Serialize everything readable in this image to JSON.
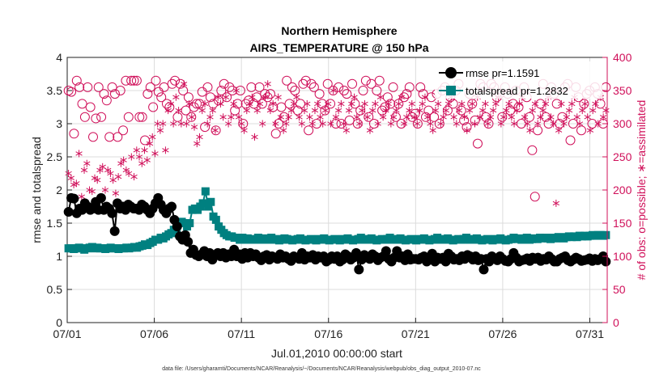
{
  "chart_data": {
    "type": "line",
    "title": "Northern Hemisphere",
    "subtitle": "AIRS_TEMPERATURE @ 150 hPa",
    "xlabel": "Jul.01,2010 00:00:00 start",
    "ylabel_left": "rmse and totalspread",
    "ylabel_right": "# of obs: o=possible; ∗=assimilated",
    "footnote": "data file: /Users/gharamti/Documents/NCAR/Reanalysis/~/Documents/NCAR/Reanalysis/webpub/obs_diag_output_2010-07.nc",
    "xlim": [
      0,
      31
    ],
    "ylim_left": [
      0,
      4
    ],
    "ylim_right": [
      0,
      400
    ],
    "x_ticks": [
      0,
      5,
      10,
      15,
      20,
      25,
      30
    ],
    "x_tick_labels": [
      "07/01",
      "07/06",
      "07/11",
      "07/16",
      "07/21",
      "07/26",
      "07/31"
    ],
    "y_ticks_left": [
      "0",
      "0.5",
      "1",
      "1.5",
      "2",
      "2.5",
      "3",
      "3.5",
      "4"
    ],
    "y_ticks_right": [
      "0",
      "50",
      "100",
      "150",
      "200",
      "250",
      "300",
      "350",
      "400"
    ],
    "legend": [
      {
        "label": "rmse pr=1.1591",
        "color": "#000000",
        "marker": "circle"
      },
      {
        "label": "totalspread pr=1.2832",
        "color": "#008080",
        "marker": "square"
      }
    ],
    "colors": {
      "rmse": "#000000",
      "spread": "#008080",
      "obs": "#d0105a",
      "axis_right": "#d0105a"
    },
    "series": {
      "rmse": [
        1.67,
        1.88,
        1.87,
        1.65,
        1.72,
        1.7,
        1.8,
        1.75,
        1.7,
        1.72,
        1.82,
        1.7,
        1.88,
        1.7,
        1.75,
        1.72,
        1.65,
        1.38,
        1.8,
        1.72,
        1.75,
        1.7,
        1.78,
        1.75,
        1.72,
        1.72,
        1.7,
        1.78,
        1.75,
        1.7,
        1.65,
        1.72,
        1.8,
        1.88,
        1.78,
        1.7,
        1.65,
        1.72,
        1.75,
        1.55,
        1.45,
        1.3,
        1.25,
        1.32,
        1.22,
        1.05,
        1.1,
        1.02,
        1.0,
        1.03,
        1.08,
        1.0,
        1.05,
        0.95,
        1.02,
        1.05,
        1.0,
        1.05,
        0.98,
        1.03,
        1.0,
        1.1,
        1.0,
        1.03,
        0.96,
        1.05,
        0.98,
        1.05,
        1.0,
        1.03,
        0.98,
        0.94,
        1.0,
        1.02,
        0.95,
        1.0,
        0.98,
        0.96,
        1.03,
        0.98,
        1.0,
        0.96,
        0.93,
        1.0,
        0.98,
        0.96,
        1.05,
        0.95,
        1.0,
        0.98,
        1.02,
        0.95,
        1.0,
        0.98,
        1.0,
        0.92,
        0.95,
        1.0,
        0.96,
        1.0,
        0.92,
        0.95,
        1.03,
        1.0,
        0.95,
        0.98,
        1.05,
        0.8,
        0.95,
        1.02,
        0.98,
        0.96,
        1.03,
        1.0,
        0.94,
        0.98,
        1.0,
        1.08,
        0.96,
        0.92,
        0.98,
        1.08,
        0.98,
        1.0,
        0.94,
        1.03,
        0.95,
        0.96,
        0.96,
        0.95,
        0.98,
        1.0,
        0.92,
        0.98,
        1.04,
        0.92,
        0.98,
        0.96,
        0.98,
        0.92,
        1.04,
        1.0,
        0.95,
        0.96,
        0.94,
        1.0,
        0.96,
        1.02,
        1.0,
        0.95,
        1.0,
        0.94,
        0.96,
        0.8,
        0.96,
        0.92,
        1.0,
        0.96,
        0.94,
        1.0,
        0.96,
        0.93,
        0.92,
        0.96,
        1.05,
        0.98,
        0.92,
        0.94,
        0.95,
        0.97,
        0.93,
        0.98,
        0.96,
        0.98,
        0.93,
        0.96,
        0.95,
        1.0,
        0.96,
        0.92,
        0.92,
        0.96,
        0.98,
        1.0,
        0.94,
        0.92,
        0.95,
        0.98,
        0.96,
        0.93,
        0.94,
        0.95,
        0.97,
        0.93,
        0.96,
        0.94,
        0.96,
        1.0,
        0.92
      ],
      "totalspread": [
        1.12,
        1.12,
        1.11,
        1.12,
        1.13,
        1.12,
        1.1,
        1.12,
        1.13,
        1.14,
        1.12,
        1.13,
        1.12,
        1.12,
        1.11,
        1.12,
        1.13,
        1.12,
        1.12,
        1.11,
        1.12,
        1.12,
        1.13,
        1.12,
        1.13,
        1.14,
        1.13,
        1.15,
        1.16,
        1.18,
        1.17,
        1.2,
        1.22,
        1.25,
        1.25,
        1.28,
        1.27,
        1.3,
        1.33,
        1.35,
        1.4,
        1.42,
        1.5,
        1.52,
        1.5,
        1.45,
        1.5,
        1.7,
        1.72,
        1.7,
        1.75,
        1.8,
        1.98,
        1.75,
        1.82,
        1.6,
        1.55,
        1.45,
        1.4,
        1.35,
        1.32,
        1.3,
        1.3,
        1.28,
        1.28,
        1.25,
        1.28,
        1.25,
        1.27,
        1.25,
        1.26,
        1.25,
        1.28,
        1.25,
        1.27,
        1.25,
        1.26,
        1.28,
        1.25,
        1.26,
        1.24,
        1.25,
        1.27,
        1.26,
        1.25,
        1.24,
        1.25,
        1.26,
        1.27,
        1.25,
        1.24,
        1.25,
        1.26,
        1.25,
        1.24,
        1.26,
        1.25,
        1.27,
        1.25,
        1.24,
        1.25,
        1.26,
        1.25,
        1.24,
        1.26,
        1.25,
        1.27,
        1.25,
        1.24,
        1.25,
        1.26,
        1.28,
        1.25,
        1.26,
        1.25,
        1.27,
        1.25,
        1.24,
        1.25,
        1.26,
        1.25,
        1.26,
        1.28,
        1.25,
        1.26,
        1.25,
        1.27,
        1.25,
        1.24,
        1.25,
        1.26,
        1.25,
        1.24,
        1.26,
        1.25,
        1.27,
        1.25,
        1.24,
        1.25,
        1.26,
        1.28,
        1.25,
        1.26,
        1.25,
        1.27,
        1.25,
        1.24,
        1.25,
        1.26,
        1.25,
        1.26,
        1.28,
        1.25,
        1.26,
        1.25,
        1.27,
        1.25,
        1.24,
        1.25,
        1.26,
        1.25,
        1.24,
        1.26,
        1.25,
        1.27,
        1.25,
        1.24,
        1.25,
        1.26,
        1.28,
        1.26,
        1.27,
        1.25,
        1.26,
        1.28,
        1.25,
        1.26,
        1.27,
        1.26,
        1.28,
        1.27,
        1.28,
        1.27,
        1.26,
        1.28,
        1.27,
        1.29,
        1.28,
        1.27,
        1.29,
        1.3,
        1.29,
        1.3,
        1.29,
        1.31,
        1.3,
        1.31,
        1.3,
        1.31,
        1.32,
        1.31,
        1.32,
        1.32,
        1.31,
        1.32
      ],
      "obs_possible": [
        350,
        348,
        285,
        365,
        355,
        330,
        310,
        355,
        325,
        280,
        308,
        355,
        310,
        345,
        335,
        280,
        355,
        345,
        280,
        350,
        290,
        365,
        310,
        365,
        365,
        365,
        310,
        310,
        275,
        345,
        355,
        325,
        365,
        348,
        340,
        355,
        330,
        325,
        360,
        365,
        310,
        360,
        350,
        320,
        340,
        310,
        325,
        330,
        330,
        348,
        295,
        355,
        340,
        330,
        290,
        335,
        350,
        360,
        340,
        355,
        350,
        320,
        330,
        350,
        300,
        330,
        335,
        355,
        330,
        340,
        355,
        330,
        345,
        340,
        345,
        325,
        285,
        300,
        325,
        310,
        365,
        330,
        355,
        350,
        320,
        330,
        360,
        365,
        290,
        360,
        355,
        300,
        345,
        330,
        320,
        360,
        330,
        350,
        300,
        355,
        300,
        350,
        345,
        305,
        360,
        330,
        300,
        320,
        350,
        365,
        310,
        360,
        300,
        350,
        365,
        320,
        325,
        340,
        330,
        355,
        310,
        330,
        300,
        340,
        345,
        355,
        310,
        315,
        300,
        355,
        345,
        310,
        320,
        340,
        310,
        345,
        300,
        350,
        355,
        320,
        340,
        330,
        350,
        360,
        320,
        305,
        295,
        345,
        330,
        305,
        270,
        360,
        355,
        310,
        300,
        360,
        355,
        340,
        345,
        310,
        355,
        345,
        320,
        330,
        350,
        325,
        300,
        355,
        340,
        310,
        260,
        190,
        290,
        330,
        360,
        310,
        300,
        355,
        345,
        330,
        300,
        310,
        355,
        360,
        275,
        300,
        355,
        340,
        290,
        330,
        345,
        350,
        300,
        355,
        345,
        330,
        300,
        355
      ],
      "obs_assimilated": [
        225,
        218,
        208,
        210,
        255,
        190,
        230,
        240,
        200,
        198,
        218,
        215,
        230,
        235,
        200,
        230,
        225,
        215,
        195,
        220,
        240,
        245,
        230,
        225,
        250,
        220,
        260,
        250,
        240,
        260,
        245,
        270,
        280,
        255,
        300,
        290,
        300,
        260,
        320,
        330,
        300,
        340,
        320,
        300,
        360,
        300,
        330,
        310,
        295,
        270,
        280,
        320,
        330,
        300,
        310,
        320,
        290,
        340,
        330,
        310,
        340,
        300,
        310,
        330,
        350,
        310,
        300,
        290,
        320,
        330,
        340,
        280,
        320,
        330,
        300,
        340,
        360,
        320,
        330,
        300,
        340,
        310,
        290,
        300,
        310,
        320,
        330,
        340,
        310,
        300,
        320,
        330,
        310,
        300,
        320,
        330,
        310,
        300,
        320,
        330,
        300,
        350,
        310,
        320,
        330,
        300,
        290,
        320,
        330,
        340,
        310,
        300,
        320,
        330,
        310,
        290,
        320,
        330,
        300,
        340,
        310,
        320,
        330,
        300,
        310,
        320,
        330,
        340,
        300,
        310,
        320,
        330,
        310,
        300,
        320,
        330,
        340,
        310,
        300,
        290,
        320,
        330,
        300,
        310,
        320,
        330,
        340,
        310,
        300,
        320,
        330,
        310,
        290,
        320,
        330,
        300,
        340,
        310,
        320,
        330,
        300,
        310,
        320,
        330,
        340,
        300,
        310,
        320,
        330,
        310,
        300,
        320,
        330,
        340,
        310,
        300,
        290,
        320,
        330,
        300,
        310,
        320,
        330,
        340,
        310,
        300,
        180,
        290,
        330,
        300,
        310,
        320,
        330,
        340,
        310,
        300,
        320,
        330,
        310,
        290,
        320,
        330,
        300,
        340,
        310,
        320
      ]
    }
  }
}
